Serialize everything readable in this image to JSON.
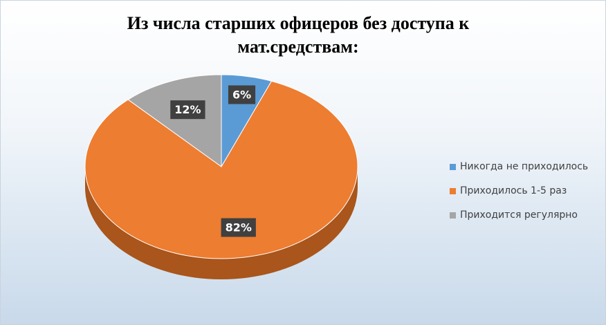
{
  "chart_data": {
    "type": "pie",
    "title": "Из числа старших офицеров без доступа к мат.средствам:",
    "title_lines": [
      "Из числа старших офицеров без доступа к",
      "мат.средствам:"
    ],
    "style": "3d",
    "legend_position": "right",
    "series": [
      {
        "values": [
          6,
          82,
          12
        ],
        "categories": [
          "Никогда не приходилось",
          "Приходилось 1-5 раз",
          "Приходится регулярно"
        ],
        "data_labels": [
          "6%",
          "82%",
          "12%"
        ],
        "colors": [
          "#5b9bd5",
          "#ed7d31",
          "#a5a5a5"
        ],
        "side_colors": [
          "#3a6f9e",
          "#a9551b",
          "#7a7a7a"
        ]
      }
    ]
  }
}
